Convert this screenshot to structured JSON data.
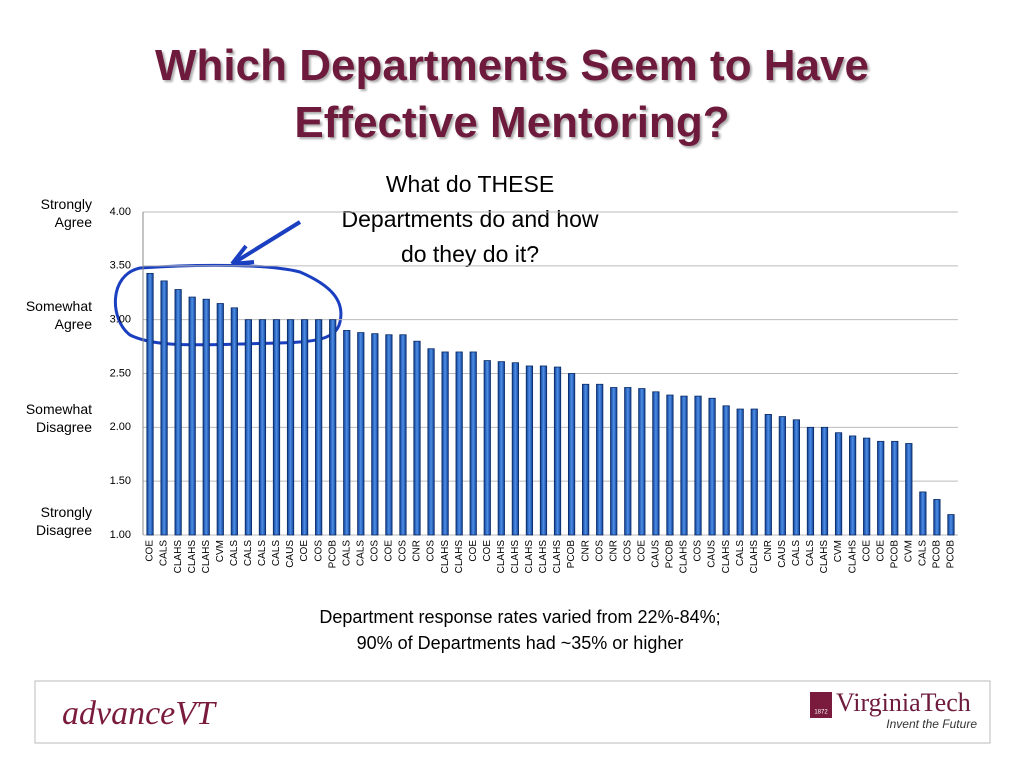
{
  "chart_data": {
    "type": "bar",
    "title": "Which Departments Seem to Have Effective Mentoring?",
    "annotation": "What do THESE Departments do and how do they do it?",
    "y_labels": [
      "Strongly Agree",
      "Somewhat Agree",
      "Somewhat Disagree",
      "Strongly Disagree"
    ],
    "footnote": [
      "Department response rates varied from 22%-84%;",
      "90% of Departments had ~35% or higher"
    ],
    "categories": [
      "COE",
      "CALS",
      "CLAHS",
      "CLAHS",
      "CLAHS",
      "CVM",
      "CALS",
      "CALS",
      "CALS",
      "CALS",
      "CAUS",
      "COE",
      "COS",
      "PCOB",
      "CALS",
      "CALS",
      "COS",
      "COE",
      "COS",
      "CNR",
      "COS",
      "CLAHS",
      "CLAHS",
      "COE",
      "COE",
      "CLAHS",
      "CLAHS",
      "CLAHS",
      "CLAHS",
      "CLAHS",
      "PCOB",
      "CNR",
      "COS",
      "CNR",
      "COS",
      "COE",
      "CAUS",
      "PCOB",
      "CLAHS",
      "COS",
      "CAUS",
      "CLAHS",
      "CALS",
      "CLAHS",
      "CNR",
      "CAUS",
      "CALS",
      "CALS",
      "CLAHS",
      "CVM",
      "CLAHS",
      "COE",
      "COE",
      "PCOB",
      "CVM",
      "CALS",
      "PCOB",
      "PCOB"
    ],
    "values": [
      3.43,
      3.36,
      3.28,
      3.21,
      3.19,
      3.15,
      3.11,
      3.0,
      3.0,
      3.0,
      3.0,
      3.0,
      3.0,
      3.0,
      2.9,
      2.88,
      2.87,
      2.86,
      2.86,
      2.8,
      2.73,
      2.7,
      2.7,
      2.7,
      2.62,
      2.61,
      2.6,
      2.57,
      2.57,
      2.56,
      2.5,
      2.4,
      2.4,
      2.37,
      2.37,
      2.36,
      2.33,
      2.3,
      2.29,
      2.29,
      2.27,
      2.2,
      2.17,
      2.17,
      2.12,
      2.1,
      2.07,
      2.0,
      2.0,
      1.95,
      1.92,
      1.9,
      1.87,
      1.87,
      1.85,
      1.4,
      1.33,
      1.19
    ],
    "color": "#1f5fc8",
    "ylim": [
      1,
      4
    ],
    "yticks": [
      {
        "value": 1,
        "label": "1.00"
      },
      {
        "value": 1.5,
        "label": "1.50"
      },
      {
        "value": 2,
        "label": "2.00"
      },
      {
        "value": 2.5,
        "label": "2.50"
      },
      {
        "value": 3,
        "label": "3.00"
      },
      {
        "value": 3.5,
        "label": "3.50"
      },
      {
        "value": 4,
        "label": "4.00"
      }
    ],
    "grid": true
  },
  "footer": {
    "left_logo": "advanceVT",
    "right_logo": "VirginiaTech",
    "right_logo_year": "1872",
    "tagline": "Invent the Future"
  }
}
